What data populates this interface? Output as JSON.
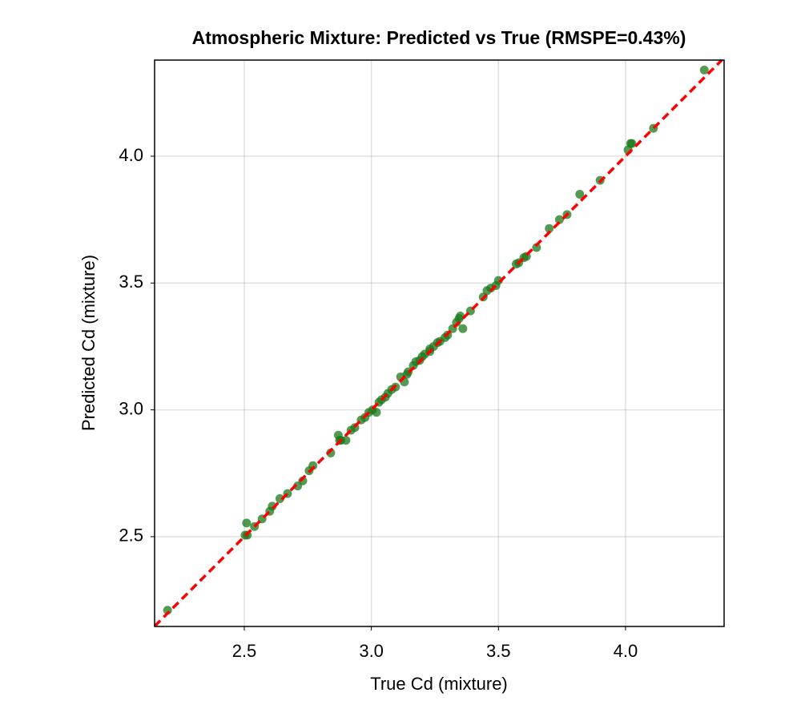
{
  "chart_data": {
    "type": "scatter",
    "title": "Atmospheric Mixture: Predicted vs True (RMSPE=0.43%)",
    "x_label": "True Cd (mixture)",
    "y_label": "Predicted Cd (mixture)",
    "x": [
      2.198,
      2.503,
      2.509,
      2.512,
      2.54,
      2.57,
      2.6,
      2.61,
      2.64,
      2.67,
      2.71,
      2.73,
      2.755,
      2.77,
      2.84,
      2.87,
      2.875,
      2.88,
      2.9,
      2.92,
      2.935,
      2.96,
      2.975,
      2.99,
      3.005,
      3.02,
      3.03,
      3.04,
      3.055,
      3.065,
      3.08,
      3.095,
      3.115,
      3.13,
      3.14,
      3.145,
      3.165,
      3.175,
      3.19,
      3.2,
      3.21,
      3.23,
      3.23,
      3.245,
      3.26,
      3.27,
      3.29,
      3.3,
      3.32,
      3.335,
      3.345,
      3.35,
      3.36,
      3.39,
      3.44,
      3.455,
      3.47,
      3.49,
      3.5,
      3.57,
      3.58,
      3.6,
      3.61,
      3.65,
      3.7,
      3.74,
      3.77,
      3.82,
      3.9,
      4.01,
      4.02,
      4.025,
      4.11,
      4.31
    ],
    "values": [
      2.21,
      2.506,
      2.554,
      2.506,
      2.54,
      2.57,
      2.6,
      2.62,
      2.65,
      2.67,
      2.7,
      2.72,
      2.76,
      2.78,
      2.83,
      2.9,
      2.88,
      2.88,
      2.88,
      2.92,
      2.93,
      2.96,
      2.97,
      2.99,
      3.0,
      2.99,
      3.03,
      3.04,
      3.05,
      3.065,
      3.08,
      3.09,
      3.13,
      3.11,
      3.14,
      3.15,
      3.175,
      3.19,
      3.195,
      3.21,
      3.22,
      3.23,
      3.24,
      3.25,
      3.265,
      3.27,
      3.285,
      3.295,
      3.32,
      3.345,
      3.36,
      3.37,
      3.32,
      3.39,
      3.445,
      3.47,
      3.48,
      3.49,
      3.51,
      3.575,
      3.58,
      3.6,
      3.605,
      3.64,
      3.715,
      3.75,
      3.77,
      3.85,
      3.905,
      4.025,
      4.05,
      4.05,
      4.11,
      4.34
    ],
    "color": "#1a7a1a",
    "reference_line_color": "#ff0000",
    "xlim": [
      2.147,
      4.388
    ],
    "ylim": [
      2.146,
      4.379
    ],
    "xticks": [
      2.5,
      {
        "value": 3,
        "label": "3.0"
      },
      3.5,
      {
        "value": 4,
        "label": "4.0"
      }
    ],
    "yticks": [
      2.5,
      {
        "value": 3,
        "label": "3.0"
      },
      3.5,
      {
        "value": 4,
        "label": "4.0"
      }
    ],
    "grid": true
  }
}
